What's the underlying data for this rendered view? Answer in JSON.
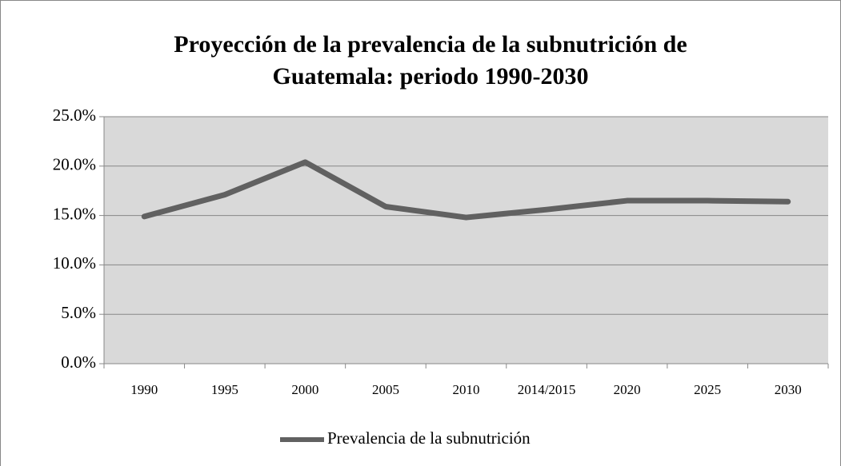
{
  "chart_data": {
    "type": "line",
    "title": [
      "Proyección de la prevalencia de la subnutrición de",
      "Guatemala: periodo 1990-2030"
    ],
    "categories": [
      "1990",
      "1995",
      "2000",
      "2005",
      "2010",
      "2014/2015",
      "2020",
      "2025",
      "2030"
    ],
    "series": [
      {
        "name": "Prevalencia de la subnutrición",
        "color": "#616161",
        "values": [
          14.9,
          17.1,
          20.4,
          15.9,
          14.8,
          15.6,
          16.5,
          16.5,
          16.4
        ]
      }
    ],
    "ylim": [
      0,
      25
    ],
    "yticks": [
      {
        "value": 0,
        "label": "0.0%"
      },
      {
        "value": 5,
        "label": "5.0%"
      },
      {
        "value": 10,
        "label": "10.0%"
      },
      {
        "value": 15,
        "label": "15.0%"
      },
      {
        "value": 20,
        "label": "20.0%"
      },
      {
        "value": 25,
        "label": "25.0%"
      }
    ],
    "grid": true,
    "legend": "bottom"
  }
}
